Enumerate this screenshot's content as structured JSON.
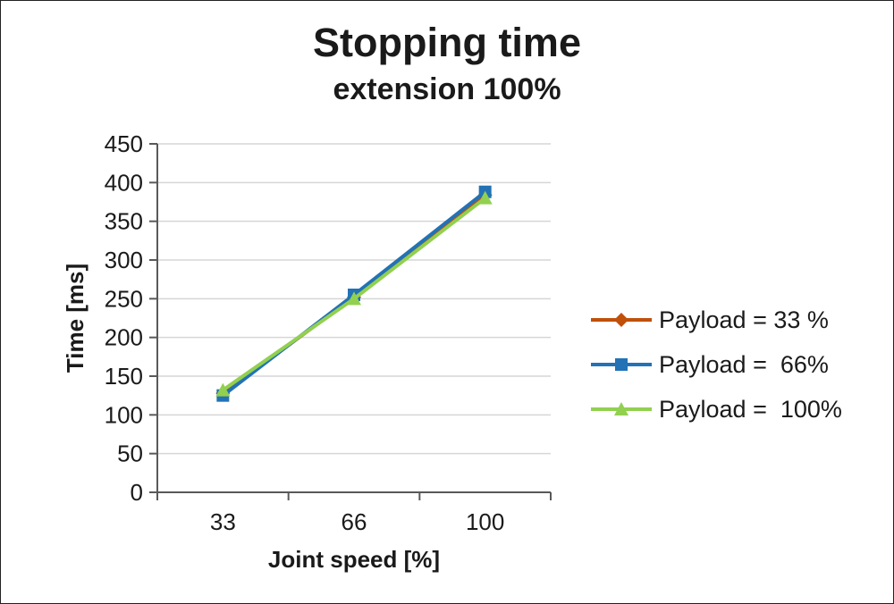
{
  "chart_data": {
    "type": "line",
    "title": "Stopping time",
    "subtitle": "extension 100%",
    "xlabel": "Joint speed [%]",
    "ylabel": "Time [ms]",
    "categories": [
      "33",
      "66",
      "100"
    ],
    "ylim": [
      0,
      450
    ],
    "ytick_step": 50,
    "grid": true,
    "legend_position": "right",
    "colors": {
      "gridline": "#d6d6d6",
      "axis": "#595959",
      "text": "#1a1a1a"
    },
    "series": [
      {
        "name": "Payload = 33 %",
        "marker": "diamond",
        "color": "#c0500a",
        "values": [
          128,
          252,
          384
        ]
      },
      {
        "name": "Payload =  66%",
        "marker": "square",
        "color": "#2272b5",
        "values": [
          125,
          255,
          388
        ]
      },
      {
        "name": "Payload =  100%",
        "marker": "triangle",
        "color": "#92d050",
        "values": [
          132,
          250,
          380
        ]
      }
    ]
  }
}
